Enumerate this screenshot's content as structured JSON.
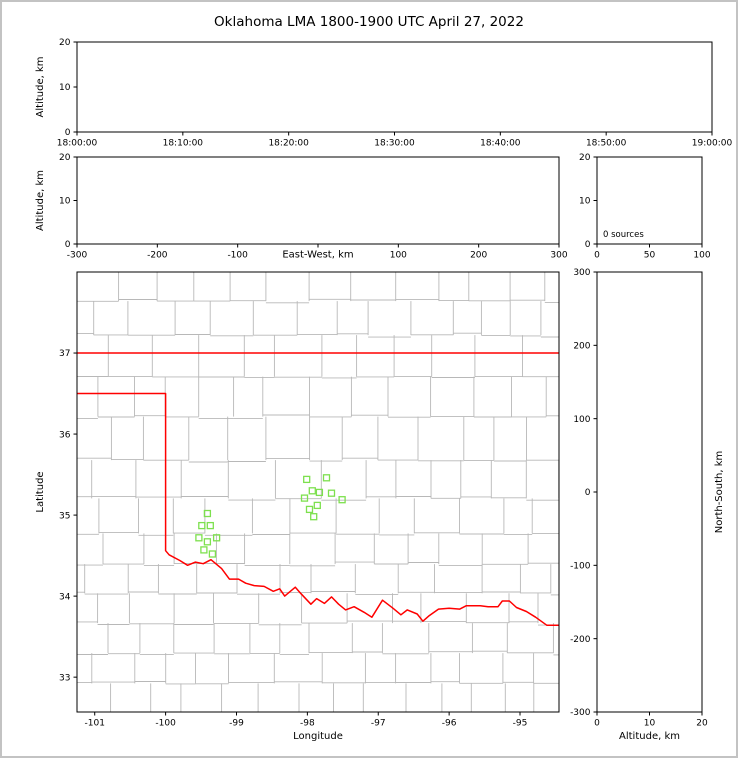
{
  "title": "Oklahoma LMA 1800-1900 UTC April 27, 2022",
  "colors": {
    "background": "#ffffff",
    "frame": "#c3c3c3",
    "axis": "#000000",
    "county_line": "#b8b8b8",
    "state_border": "#ff0000",
    "station_marker": "#7de04e"
  },
  "chart_data": [
    {
      "id": "time_height",
      "type": "scatter",
      "xlim": [
        0,
        3600
      ],
      "ylim": [
        0,
        20
      ],
      "xticks": [
        {
          "v": 0,
          "label": "18:00:00"
        },
        {
          "v": 600,
          "label": "18:10:00"
        },
        {
          "v": 1200,
          "label": "18:20:00"
        },
        {
          "v": 1800,
          "label": "18:30:00"
        },
        {
          "v": 2400,
          "label": "18:40:00"
        },
        {
          "v": 3000,
          "label": "18:50:00"
        },
        {
          "v": 3600,
          "label": "19:00:00"
        }
      ],
      "yticks": [
        {
          "v": 0,
          "label": "0"
        },
        {
          "v": 10,
          "label": "10"
        },
        {
          "v": 20,
          "label": "20"
        }
      ],
      "xlabel": "",
      "ylabel": "Altitude, km",
      "ylabel_side": "left",
      "points": []
    },
    {
      "id": "ew_height",
      "type": "scatter",
      "xlim": [
        -300,
        300
      ],
      "ylim": [
        0,
        20
      ],
      "xticks": [
        {
          "v": -300,
          "label": "-300"
        },
        {
          "v": -200,
          "label": "-200"
        },
        {
          "v": -100,
          "label": "-100"
        },
        {
          "v": 0,
          "label": ""
        },
        {
          "v": 100,
          "label": "100"
        },
        {
          "v": 200,
          "label": "200"
        },
        {
          "v": 300,
          "label": "300"
        }
      ],
      "yticks": [
        {
          "v": 0,
          "label": "0"
        },
        {
          "v": 10,
          "label": "10"
        },
        {
          "v": 20,
          "label": "20"
        }
      ],
      "xlabel": "East-West, km",
      "xlabel_mode": "inline",
      "xlabel_anchor_value": 0,
      "ylabel": "Altitude, km",
      "ylabel_side": "left",
      "points": []
    },
    {
      "id": "alt_hist",
      "type": "line",
      "xlim": [
        0,
        100
      ],
      "ylim": [
        0,
        20
      ],
      "xticks": [
        {
          "v": 0,
          "label": "0"
        },
        {
          "v": 50,
          "label": "50"
        },
        {
          "v": 100,
          "label": "100"
        }
      ],
      "yticks": [
        {
          "v": 0,
          "label": "0"
        },
        {
          "v": 10,
          "label": "10"
        },
        {
          "v": 20,
          "label": "20"
        }
      ],
      "xlabel": "",
      "ylabel": "",
      "annotations": [
        {
          "text": "0 sources",
          "dx": 6,
          "dy": -7
        }
      ],
      "points": []
    },
    {
      "id": "map",
      "type": "scatter",
      "xlim": [
        -101.25,
        -94.45
      ],
      "ylim": [
        32.57,
        38.0
      ],
      "xticks": [
        {
          "v": -101,
          "label": "-101"
        },
        {
          "v": -100,
          "label": "-100"
        },
        {
          "v": -99,
          "label": "-99"
        },
        {
          "v": -98,
          "label": "-98"
        },
        {
          "v": -97,
          "label": "-97"
        },
        {
          "v": -96,
          "label": "-96"
        },
        {
          "v": -95,
          "label": "-95"
        }
      ],
      "yticks": [
        {
          "v": 33,
          "label": "33"
        },
        {
          "v": 34,
          "label": "34"
        },
        {
          "v": 35,
          "label": "35"
        },
        {
          "v": 36,
          "label": "36"
        },
        {
          "v": 37,
          "label": "37"
        }
      ],
      "xlabel": "Longitude",
      "xlabel_mode": "below",
      "ylabel": "Latitude",
      "ylabel_side": "left",
      "county_grid": {
        "seed": 13,
        "lat_step": 0.45,
        "lon_step": 0.52
      },
      "state_boundaries": [
        [
          [
            -101.25,
            37.0
          ],
          [
            -94.45,
            37.0
          ]
        ],
        [
          [
            -101.25,
            36.5
          ],
          [
            -100.0,
            36.5
          ],
          [
            -100.0,
            34.56
          ],
          [
            -99.95,
            34.51
          ],
          [
            -99.8,
            34.44
          ],
          [
            -99.69,
            34.38
          ],
          [
            -99.58,
            34.42
          ],
          [
            -99.47,
            34.4
          ],
          [
            -99.36,
            34.45
          ],
          [
            -99.21,
            34.34
          ],
          [
            -99.1,
            34.21
          ],
          [
            -98.97,
            34.21
          ],
          [
            -98.87,
            34.16
          ],
          [
            -98.75,
            34.13
          ],
          [
            -98.61,
            34.12
          ],
          [
            -98.48,
            34.06
          ],
          [
            -98.39,
            34.09
          ],
          [
            -98.32,
            34.0
          ],
          [
            -98.17,
            34.11
          ],
          [
            -98.09,
            34.03
          ],
          [
            -97.95,
            33.9
          ],
          [
            -97.87,
            33.97
          ],
          [
            -97.76,
            33.91
          ],
          [
            -97.66,
            33.99
          ],
          [
            -97.56,
            33.9
          ],
          [
            -97.46,
            33.83
          ],
          [
            -97.34,
            33.87
          ],
          [
            -97.2,
            33.8
          ],
          [
            -97.09,
            33.74
          ],
          [
            -96.94,
            33.95
          ],
          [
            -96.79,
            33.85
          ],
          [
            -96.68,
            33.77
          ],
          [
            -96.59,
            33.83
          ],
          [
            -96.45,
            33.78
          ],
          [
            -96.37,
            33.69
          ],
          [
            -96.28,
            33.76
          ],
          [
            -96.15,
            33.84
          ],
          [
            -96.0,
            33.85
          ],
          [
            -95.85,
            33.84
          ],
          [
            -95.76,
            33.88
          ],
          [
            -95.56,
            33.88
          ],
          [
            -95.45,
            33.87
          ],
          [
            -95.31,
            33.87
          ],
          [
            -95.25,
            33.94
          ],
          [
            -95.15,
            33.94
          ],
          [
            -95.05,
            33.86
          ],
          [
            -94.91,
            33.81
          ],
          [
            -94.78,
            33.74
          ],
          [
            -94.62,
            33.64
          ],
          [
            -94.45,
            33.64
          ]
        ]
      ],
      "stations": [
        [
          -98.01,
          35.44
        ],
        [
          -97.73,
          35.46
        ],
        [
          -97.93,
          35.3
        ],
        [
          -97.83,
          35.28
        ],
        [
          -98.04,
          35.21
        ],
        [
          -97.66,
          35.27
        ],
        [
          -97.51,
          35.19
        ],
        [
          -97.97,
          35.07
        ],
        [
          -97.86,
          35.12
        ],
        [
          -97.91,
          34.98
        ],
        [
          -99.41,
          35.02
        ],
        [
          -99.49,
          34.87
        ],
        [
          -99.37,
          34.87
        ],
        [
          -99.53,
          34.72
        ],
        [
          -99.41,
          34.67
        ],
        [
          -99.28,
          34.72
        ],
        [
          -99.46,
          34.57
        ],
        [
          -99.34,
          34.52
        ]
      ],
      "points": []
    },
    {
      "id": "ns_alt",
      "type": "scatter",
      "xlim": [
        0,
        20
      ],
      "ylim": [
        -300,
        300
      ],
      "xticks": [
        {
          "v": 0,
          "label": "0"
        },
        {
          "v": 10,
          "label": "10"
        },
        {
          "v": 20,
          "label": "20"
        }
      ],
      "yticks": [
        {
          "v": -300,
          "label": "-300"
        },
        {
          "v": -200,
          "label": "-200"
        },
        {
          "v": -100,
          "label": "-100"
        },
        {
          "v": 0,
          "label": "0"
        },
        {
          "v": 100,
          "label": "100"
        },
        {
          "v": 200,
          "label": "200"
        },
        {
          "v": 300,
          "label": "300"
        }
      ],
      "xlabel": "Altitude, km",
      "xlabel_mode": "below",
      "ylabel": "North-South, km",
      "ylabel_side": "right",
      "points": []
    }
  ]
}
